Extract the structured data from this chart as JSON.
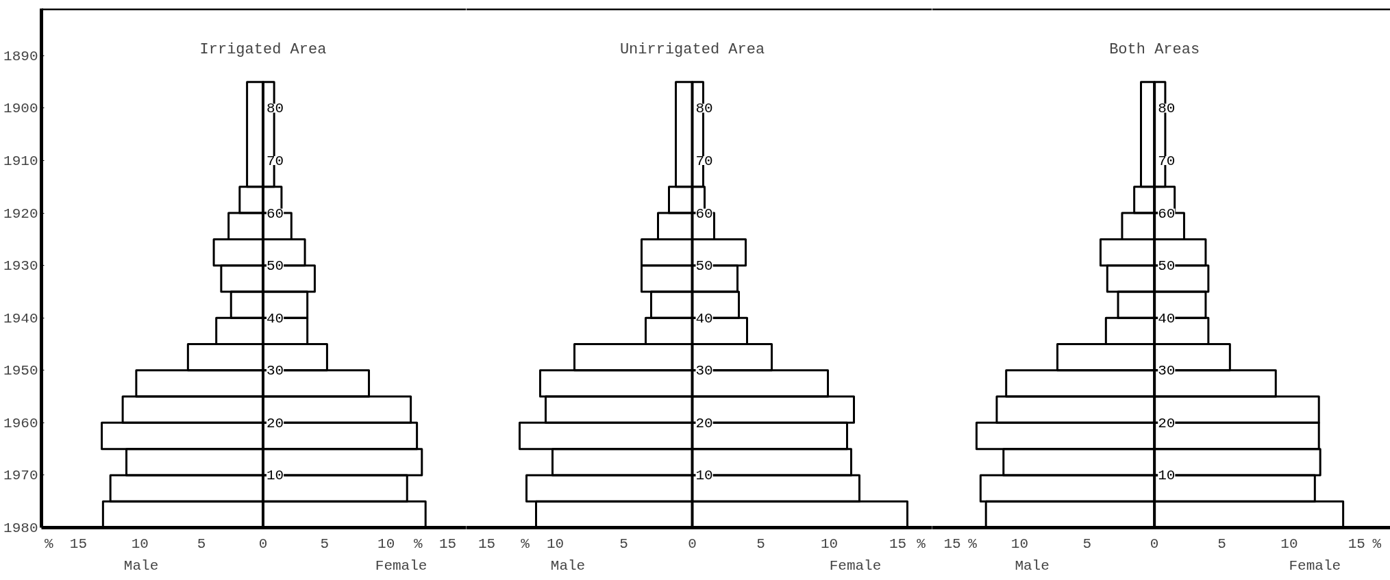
{
  "chart_data": [
    {
      "type": "histogram",
      "orientation": "horizontal",
      "title": "Irrigated Area",
      "bins": [
        0,
        5,
        10,
        15,
        20,
        25,
        30,
        35,
        40,
        45,
        50,
        55,
        60,
        65,
        85
      ],
      "series": [
        {
          "name": "Male",
          "color": "#000000",
          "values": [
            -13.0,
            -12.4,
            -11.1,
            -13.1,
            -11.4,
            -10.3,
            -6.1,
            -3.8,
            -2.6,
            -3.4,
            -4.0,
            -2.8,
            -1.9,
            -1.3
          ]
        },
        {
          "name": "Female",
          "color": "#000000",
          "values": [
            13.2,
            11.7,
            12.9,
            12.5,
            12.0,
            8.6,
            5.2,
            3.6,
            3.6,
            4.2,
            3.4,
            2.3,
            1.5,
            0.9
          ]
        }
      ],
      "xlim": [
        -18,
        16.5
      ],
      "xticks": [
        {
          "value": -17.4,
          "label": "%"
        },
        {
          "value": -15,
          "label": "15"
        },
        {
          "value": -10,
          "label": "10"
        },
        {
          "value": -5,
          "label": "5"
        },
        0,
        5,
        10,
        {
          "value": 12.6,
          "label": "%"
        },
        15
      ],
      "ylim": [
        0,
        99
      ],
      "yticks": [
        10,
        20,
        30,
        40,
        50,
        60,
        70,
        80
      ],
      "y2lim": [
        1980,
        1881
      ],
      "y2ticks": [
        1890,
        1900,
        1910,
        1920,
        1930,
        1940,
        1950,
        1960,
        1970,
        1980
      ]
    },
    {
      "type": "histogram",
      "orientation": "horizontal",
      "title": "Unirrigated Area",
      "bins": [
        0,
        5,
        10,
        15,
        20,
        25,
        30,
        35,
        40,
        45,
        50,
        55,
        60,
        65,
        85
      ],
      "series": [
        {
          "name": "Male",
          "color": "#000000",
          "values": [
            -11.4,
            -12.1,
            -10.2,
            -12.6,
            -10.7,
            -11.1,
            -8.6,
            -3.4,
            -3.0,
            -3.7,
            -3.7,
            -2.5,
            -1.7,
            -1.2
          ]
        },
        {
          "name": "Female",
          "color": "#000000",
          "values": [
            15.7,
            12.2,
            11.6,
            11.3,
            11.8,
            9.9,
            5.8,
            4.0,
            3.4,
            3.3,
            3.9,
            1.6,
            0.9,
            0.8
          ]
        }
      ],
      "xlim": [
        -16.5,
        17.5
      ],
      "xticks": [
        {
          "value": -15,
          "label": "15"
        },
        {
          "value": -12.2,
          "label": "%"
        },
        {
          "value": -10,
          "label": "10"
        },
        {
          "value": -5,
          "label": "5"
        },
        0,
        5,
        10,
        15,
        {
          "value": 16.7,
          "label": "%"
        }
      ],
      "ylim": [
        0,
        99
      ],
      "yticks": [
        10,
        20,
        30,
        40,
        50,
        60,
        70,
        80
      ]
    },
    {
      "type": "histogram",
      "orientation": "horizontal",
      "title": "Both Areas",
      "bins": [
        0,
        5,
        10,
        15,
        20,
        25,
        30,
        35,
        40,
        45,
        50,
        55,
        60,
        65,
        85
      ],
      "series": [
        {
          "name": "Male",
          "color": "#000000",
          "values": [
            -12.5,
            -12.9,
            -11.2,
            -13.2,
            -11.7,
            -11.0,
            -7.2,
            -3.6,
            -2.7,
            -3.5,
            -4.0,
            -2.4,
            -1.5,
            -1.0
          ]
        },
        {
          "name": "Female",
          "color": "#000000",
          "values": [
            14.0,
            11.9,
            12.3,
            12.2,
            12.2,
            9.0,
            5.6,
            4.0,
            3.8,
            4.0,
            3.8,
            2.2,
            1.5,
            0.8
          ]
        }
      ],
      "xlim": [
        -16.5,
        17.5
      ],
      "xticks": [
        {
          "value": -15,
          "label": "15"
        },
        {
          "value": -13.5,
          "label": "%"
        },
        {
          "value": -10,
          "label": "10"
        },
        {
          "value": -5,
          "label": "5"
        },
        0,
        5,
        10,
        15,
        {
          "value": 16.5,
          "label": "%"
        }
      ],
      "ylim": [
        0,
        99
      ],
      "yticks": [
        10,
        20,
        30,
        40,
        50,
        60,
        70,
        80
      ]
    }
  ]
}
